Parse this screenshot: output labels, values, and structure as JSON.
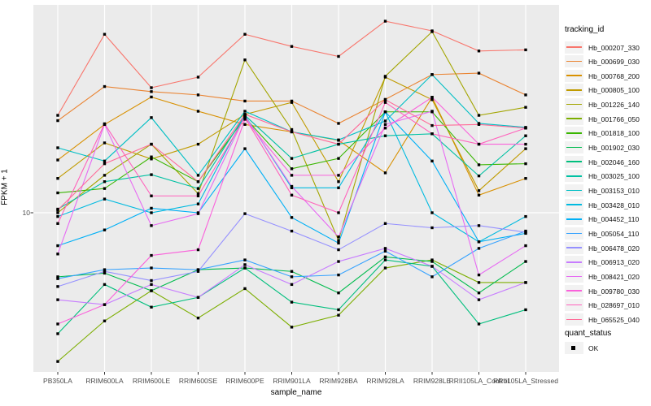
{
  "chart": {
    "y_axis_label": "FPKM + 1",
    "x_axis_label": "sample_name",
    "y_tick_label": "10",
    "legend_title_tracking": "tracking_id",
    "legend_title_quant": "quant_status",
    "quant_status_label": "OK"
  },
  "colors": {
    "panel_bg": "#EBEBEB",
    "gridline": "#FFFFFF",
    "axis_text": "#4D4D4D",
    "tick_mark": "#333333",
    "marker": "#000000",
    "legend_key_bg": "#F2F2F2"
  },
  "chart_data": {
    "type": "line",
    "title": "",
    "xlabel": "sample_name",
    "ylabel": "FPKM + 1",
    "y_scale": "log10",
    "y_ticks": [
      10
    ],
    "ylim": [
      1.8,
      95
    ],
    "grid": "white-on-grey, vertical line per category, horizontal line at 10",
    "legend_position": "right",
    "legend_titles": [
      "tracking_id",
      "quant_status"
    ],
    "quant_status": "OK",
    "marker": "black-square",
    "categories": [
      "PB350LA",
      "RRIM600LA",
      "RRIM600LE",
      "RRIM600SE",
      "RRIM600PE",
      "RRIM901LA",
      "RRIM928BA",
      "RRIM928LA",
      "RRIM928LE",
      "RRII105LA_Control",
      "RRII105LA_Stressed"
    ],
    "series": [
      {
        "name": "Hb_000207_330",
        "color": "#F8766D",
        "values": [
          28.7,
          69.0,
          38.7,
          43.4,
          69.0,
          60.5,
          54.3,
          79.5,
          71.6,
          57.6,
          58.3
        ]
      },
      {
        "name": "Hb_000699_030",
        "color": "#EA8331",
        "values": [
          27.1,
          39.2,
          37.1,
          35.8,
          33.5,
          33.5,
          26.3,
          34.1,
          44.6,
          45.3,
          35.8
        ]
      },
      {
        "name": "Hb_000768_200",
        "color": "#D89000",
        "values": [
          17.7,
          26.0,
          35.0,
          30.0,
          26.0,
          24.0,
          21.9,
          15.4,
          34.9,
          12.1,
          14.5
        ]
      },
      {
        "name": "Hb_000805_100",
        "color": "#C09B00",
        "values": [
          14.5,
          21.3,
          17.9,
          21.0,
          29.0,
          33.0,
          14.0,
          43.4,
          34.0,
          12.7,
          20.0
        ]
      },
      {
        "name": "Hb_001226_140",
        "color": "#A3A500",
        "values": [
          10.0,
          15.0,
          21.0,
          12.3,
          52.3,
          24.6,
          7.4,
          43.8,
          71.0,
          28.7,
          31.3
        ]
      },
      {
        "name": "Hb_001766_050",
        "color": "#7CAE00",
        "values": [
          2.0,
          3.1,
          4.3,
          3.2,
          4.4,
          2.9,
          3.3,
          5.5,
          6.0,
          4.7,
          4.7
        ]
      },
      {
        "name": "Hb_001818_100",
        "color": "#39B600",
        "values": [
          12.4,
          13.0,
          18.3,
          14.0,
          28.0,
          16.1,
          18.0,
          29.8,
          29.8,
          16.8,
          17.0
        ]
      },
      {
        "name": "Hb_001902_030",
        "color": "#00BB4E",
        "values": [
          5.0,
          5.2,
          4.3,
          5.4,
          5.5,
          5.3,
          4.2,
          6.2,
          5.9,
          4.2,
          5.9
        ]
      },
      {
        "name": "Hb_002046_160",
        "color": "#00BF7D",
        "values": [
          2.7,
          4.6,
          3.6,
          4.0,
          5.5,
          3.8,
          3.5,
          6.0,
          5.6,
          3.0,
          3.5
        ]
      },
      {
        "name": "Hb_003025_100",
        "color": "#00C1A3",
        "values": [
          10.4,
          14.0,
          15.1,
          13.0,
          28.7,
          18.0,
          21.0,
          23.0,
          23.5,
          14.9,
          23.0
        ]
      },
      {
        "name": "Hb_003153_010",
        "color": "#00BFC4",
        "values": [
          20.2,
          17.5,
          28.0,
          15.0,
          30.0,
          24.0,
          22.0,
          27.0,
          44.6,
          26.3,
          25.2
        ]
      },
      {
        "name": "Hb_003428_010",
        "color": "#00BAE0",
        "values": [
          9.6,
          11.6,
          10.0,
          11.0,
          28.7,
          13.1,
          13.1,
          29.8,
          10.0,
          7.3,
          9.6
        ]
      },
      {
        "name": "Hb_004452_110",
        "color": "#00B0F6",
        "values": [
          7.0,
          8.3,
          10.5,
          10.0,
          20.0,
          9.5,
          7.2,
          29.8,
          17.5,
          7.3,
          8.0
        ]
      },
      {
        "name": "Hb_005054_110",
        "color": "#35A2FF",
        "values": [
          4.9,
          5.4,
          5.5,
          5.4,
          6.0,
          5.0,
          5.1,
          6.6,
          5.0,
          6.8,
          8.2
        ]
      },
      {
        "name": "Hb_006478_020",
        "color": "#9590FF",
        "values": [
          4.5,
          5.3,
          4.8,
          5.3,
          9.9,
          8.2,
          6.7,
          8.9,
          8.5,
          8.7,
          8.1
        ]
      },
      {
        "name": "Hb_006913_020",
        "color": "#C77CFF",
        "values": [
          3.9,
          3.7,
          4.6,
          4.0,
          5.7,
          4.6,
          5.9,
          6.8,
          5.6,
          3.9,
          4.7
        ]
      },
      {
        "name": "Hb_008421_020",
        "color": "#E76BF3",
        "values": [
          6.4,
          26.0,
          8.7,
          9.9,
          28.5,
          13.3,
          7.7,
          26.0,
          30.0,
          5.1,
          7.0
        ]
      },
      {
        "name": "Hb_009780_030",
        "color": "#FA62DB",
        "values": [
          3.0,
          3.7,
          6.3,
          6.7,
          27.5,
          15.0,
          15.0,
          25.0,
          34.9,
          21.0,
          21.0
        ]
      },
      {
        "name": "Hb_028697_010",
        "color": "#FF62BC",
        "values": [
          8.9,
          26.2,
          12.0,
          12.0,
          28.0,
          12.1,
          10.0,
          33.0,
          23.5,
          21.0,
          25.0
        ]
      },
      {
        "name": "Hb_065525_040",
        "color": "#FF6A98",
        "values": [
          10.3,
          17.0,
          21.0,
          14.0,
          29.0,
          24.0,
          21.0,
          34.0,
          25.7,
          26.0,
          25.0
        ]
      }
    ]
  }
}
